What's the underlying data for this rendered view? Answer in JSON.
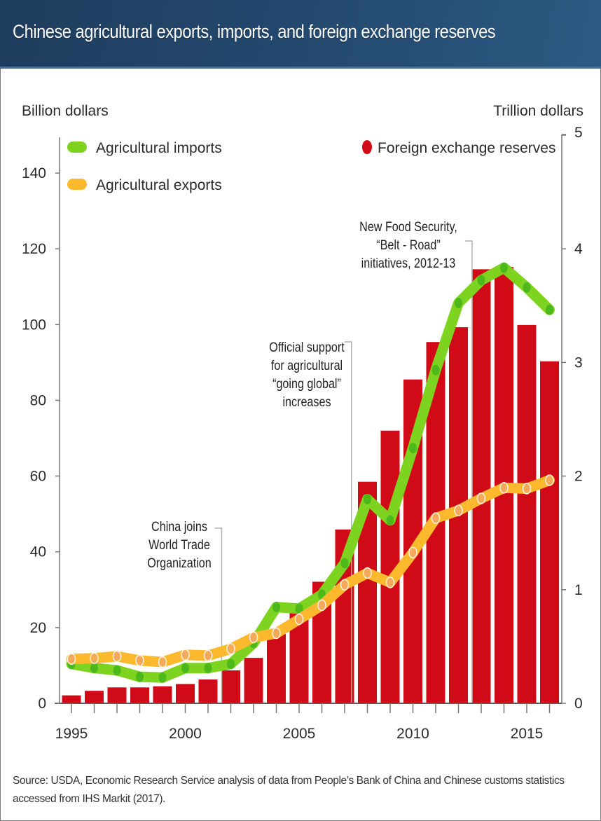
{
  "header": {
    "title": "Chinese agricultural exports, imports, and foreign exchange reserves"
  },
  "colors": {
    "imports": "#7ed321",
    "imports_marker": "#4cb81a",
    "exports": "#fdb92e",
    "exports_marker": "#f5a95a",
    "reserves": "#d00a16",
    "axis": "#777777"
  },
  "chart_data": {
    "type": "bar+line",
    "title": "Chinese agricultural exports, imports, and foreign exchange reserves",
    "xlabel": "",
    "ylabel_left": "Billion dollars",
    "ylabel_right": "Trillion dollars",
    "ylim_left": [
      0,
      150
    ],
    "ylim_right": [
      0,
      5
    ],
    "yticks_left": [
      "0",
      "20",
      "40",
      "60",
      "80",
      "100",
      "120",
      "140"
    ],
    "yticks_right": [
      "0",
      "1",
      "2",
      "3",
      "4",
      "5"
    ],
    "xticks": [
      "1995",
      "2000",
      "2005",
      "2010",
      "2015"
    ],
    "x": [
      1995,
      1996,
      1997,
      1998,
      1999,
      2000,
      2001,
      2002,
      2003,
      2004,
      2005,
      2006,
      2007,
      2008,
      2009,
      2010,
      2011,
      2012,
      2013,
      2014,
      2015,
      2016
    ],
    "grid": false,
    "legend": [
      {
        "name": "Agricultural imports",
        "position": "top-left"
      },
      {
        "name": "Agricultural exports",
        "position": "top-left"
      },
      {
        "name": "Foreign exchange reserves",
        "position": "top-right"
      }
    ],
    "series": [
      {
        "name": "Foreign exchange reserves",
        "type": "bar",
        "axis": "right",
        "unit": "Trillion dollars",
        "values": [
          0.07,
          0.11,
          0.14,
          0.14,
          0.15,
          0.17,
          0.21,
          0.29,
          0.4,
          0.61,
          0.82,
          1.07,
          1.53,
          1.95,
          2.4,
          2.85,
          3.18,
          3.31,
          3.82,
          3.84,
          3.33,
          3.01
        ]
      },
      {
        "name": "Agricultural imports",
        "type": "line",
        "axis": "left",
        "unit": "Billion dollars",
        "values": [
          10.4,
          9.3,
          8.7,
          7.0,
          6.8,
          9.3,
          9.3,
          10.4,
          15.9,
          25.4,
          25.0,
          28.7,
          37.0,
          53.9,
          48.3,
          67.4,
          88.0,
          105.7,
          111.7,
          115.0,
          109.8,
          103.9
        ]
      },
      {
        "name": "Agricultural exports",
        "type": "line",
        "axis": "left",
        "unit": "Billion dollars",
        "values": [
          11.7,
          11.9,
          12.4,
          11.3,
          10.9,
          12.8,
          12.6,
          14.4,
          17.4,
          18.5,
          22.2,
          25.9,
          31.3,
          34.4,
          31.9,
          39.8,
          48.9,
          50.9,
          54.1,
          56.9,
          56.7,
          58.9
        ]
      }
    ],
    "annotations": [
      {
        "year": 2001.6,
        "lines": [
          "China joins",
          "World Trade",
          "Organization"
        ]
      },
      {
        "year": 2007.3,
        "lines": [
          "Official support",
          "for agricultural",
          "“going global”",
          "increases"
        ]
      },
      {
        "year": 2012.6,
        "lines": [
          "New Food Security,",
          "“Belt - Road”",
          "initiatives, 2012-13"
        ]
      }
    ]
  },
  "footer": {
    "source": "Source: USDA, Economic Research Service analysis of data from People’s Bank of China and Chinese customs statistics accessed from IHS Markit (2017)."
  }
}
